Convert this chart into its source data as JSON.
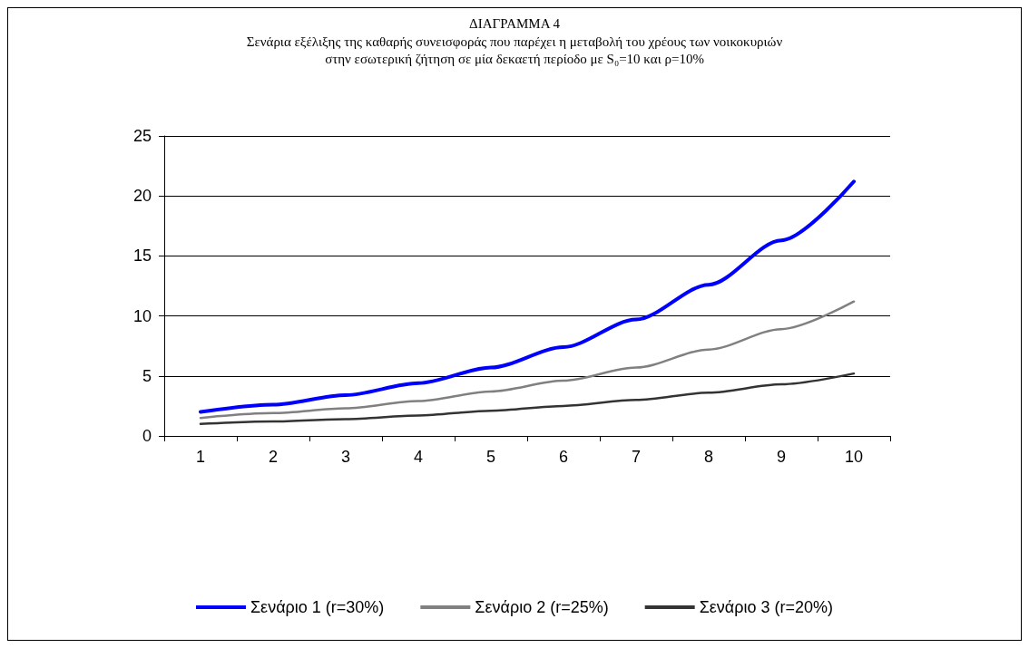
{
  "chart_data": {
    "type": "line",
    "title": "ΔΙΑΓΡΑΜΜΑ 4",
    "subtitle": "Σενάρια εξέλιξης της καθαρής συνεισφοράς που παρέχει η μεταβολή του χρέους των νοικοκυριών\nστην εσωτερική ζήτηση σε μία δεκαετή περίοδο με S₀=10 και ρ=10%",
    "categories": [
      "1",
      "2",
      "3",
      "4",
      "5",
      "6",
      "7",
      "8",
      "9",
      "10"
    ],
    "series": [
      {
        "name": "Σενάριο 1 (r=30%)",
        "color": "#0000ff",
        "values": [
          2.0,
          2.6,
          3.4,
          4.4,
          5.7,
          7.4,
          9.7,
          12.6,
          16.3,
          21.2
        ]
      },
      {
        "name": "Σενάριο 2 (r=25%)",
        "color": "#808080",
        "values": [
          1.5,
          1.9,
          2.3,
          2.9,
          3.7,
          4.6,
          5.7,
          7.2,
          8.9,
          11.2
        ]
      },
      {
        "name": "Σενάριο 3 (r=20%)",
        "color": "#333333",
        "values": [
          1.0,
          1.2,
          1.4,
          1.7,
          2.1,
          2.5,
          3.0,
          3.6,
          4.3,
          5.2
        ]
      }
    ],
    "ylim": [
      0,
      25
    ],
    "yticks": [
      0,
      5,
      10,
      15,
      20,
      25
    ],
    "grid": "y",
    "legend": "bottom",
    "marker": "none",
    "line_style": "solid"
  }
}
